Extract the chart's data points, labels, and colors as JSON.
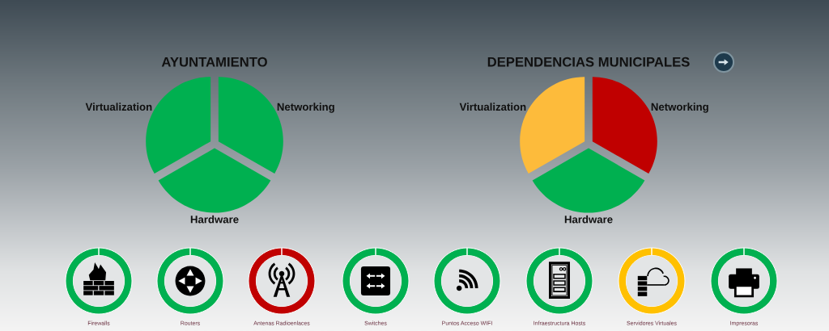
{
  "chart_data": [
    {
      "type": "pie",
      "title": "AYUNTAMIENTO",
      "categories": [
        "Virtualization",
        "Hardware",
        "Networking"
      ],
      "values": [
        33.3,
        33.4,
        33.3
      ],
      "colors": [
        "#00b050",
        "#00b050",
        "#00b050"
      ]
    },
    {
      "type": "pie",
      "title": "DEPENDENCIAS MUNICIPALES",
      "categories": [
        "Virtualization",
        "Hardware",
        "Networking"
      ],
      "values": [
        33.3,
        33.4,
        33.3
      ],
      "colors": [
        "#fdbb3b",
        "#00b050",
        "#c00000"
      ]
    },
    {
      "type": "donut",
      "title": "Firewalls",
      "categories": [
        null
      ],
      "values": [
        100
      ],
      "colors": [
        "#00b050"
      ]
    },
    {
      "type": "donut",
      "title": "Routers",
      "categories": [
        null
      ],
      "values": [
        100
      ],
      "colors": [
        "#00b050"
      ]
    },
    {
      "type": "donut",
      "title": "Antenas Radioenlaces",
      "categories": [
        null
      ],
      "values": [
        100
      ],
      "colors": [
        "#c00000"
      ]
    },
    {
      "type": "donut",
      "title": "Switches",
      "categories": [
        null
      ],
      "values": [
        100
      ],
      "colors": [
        "#00b050"
      ]
    },
    {
      "type": "donut",
      "title": "Puntos Acceso WIFI",
      "categories": [
        null
      ],
      "values": [
        100
      ],
      "colors": [
        "#00b050"
      ]
    },
    {
      "type": "donut",
      "title": "Infraestructura Hosts",
      "categories": [
        null
      ],
      "values": [
        100
      ],
      "colors": [
        "#00b050"
      ]
    },
    {
      "type": "donut",
      "title": "Servidores Virtuales",
      "categories": [
        null
      ],
      "values": [
        100
      ],
      "colors": [
        "#ffc000"
      ]
    },
    {
      "type": "donut",
      "title": "Impresoras",
      "categories": [
        null
      ],
      "values": [
        100
      ],
      "colors": [
        "#00b050"
      ]
    }
  ]
}
